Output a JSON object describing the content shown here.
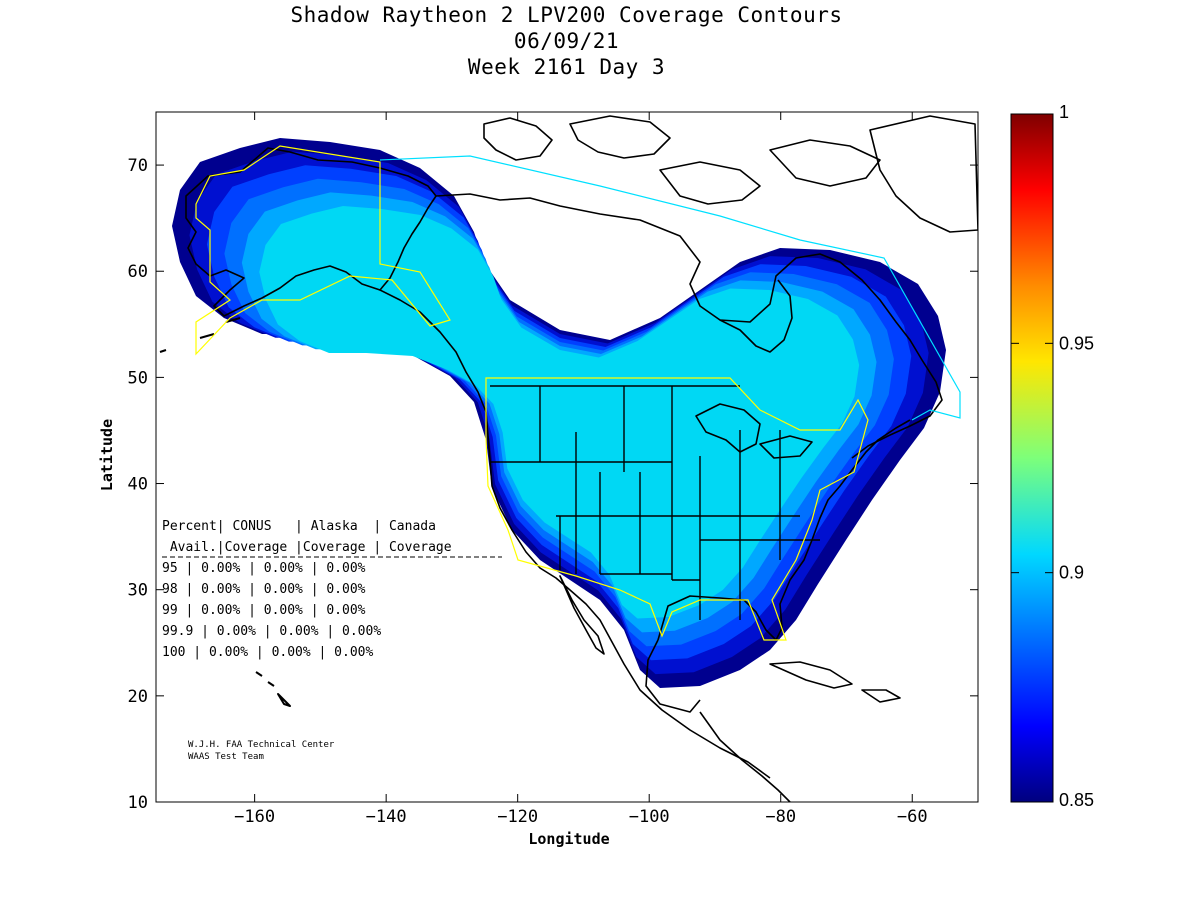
{
  "title": {
    "line1": "Shadow Raytheon 2 LPV200 Coverage Contours",
    "line2": "06/09/21",
    "line3": "Week 2161 Day 3"
  },
  "axes": {
    "xlabel": "Longitude",
    "ylabel": "Latitude",
    "x_range": [
      -175,
      -50
    ],
    "y_range": [
      10,
      75
    ],
    "x_ticks": [
      -160,
      -140,
      -120,
      -100,
      -80,
      -60
    ],
    "y_ticks": [
      10,
      20,
      30,
      40,
      50,
      60,
      70
    ]
  },
  "colorbar": {
    "min": 0.85,
    "max": 1,
    "ticks": [
      {
        "value": 0.85,
        "label": "0.85"
      },
      {
        "value": 0.9,
        "label": "0.9"
      },
      {
        "value": 0.95,
        "label": "0.95"
      },
      {
        "value": 1,
        "label": "1"
      }
    ]
  },
  "stats_table": {
    "header1": "Percent| CONUS   | Alaska  | Canada",
    "header2": " Avail.|Coverage |Coverage | Coverage",
    "rows": [
      {
        "avail": "95",
        "conus": "0.00%",
        "alaska": "0.00%",
        "canada": "0.00%"
      },
      {
        "avail": "98",
        "conus": "0.00%",
        "alaska": "0.00%",
        "canada": "0.00%"
      },
      {
        "avail": "99",
        "conus": "0.00%",
        "alaska": "0.00%",
        "canada": "0.00%"
      },
      {
        "avail": "99.9",
        "conus": "0.00%",
        "alaska": "0.00%",
        "canada": "0.00%"
      },
      {
        "avail": "100",
        "conus": "0.00%",
        "alaska": "0.00%",
        "canada": "0.00%"
      }
    ]
  },
  "credits": {
    "line1": "W.J.H. FAA Technical Center",
    "line2": "WAAS Test Team"
  },
  "colors": {
    "contour_outer": "#00008f",
    "contour_2": "#0010d0",
    "contour_3": "#0040ff",
    "contour_4": "#0070ff",
    "contour_5": "#00a8ff",
    "contour_core": "#00d8f4",
    "service_boundary": "#ffff00",
    "canada_boundary": "#00e0ff",
    "coastline": "#000000"
  }
}
